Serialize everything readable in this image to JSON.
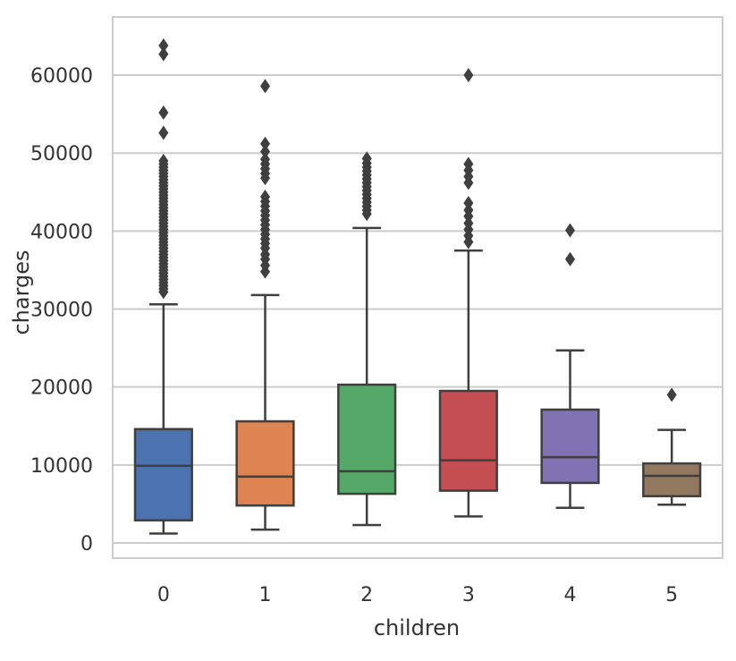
{
  "chart_data": {
    "type": "box",
    "title": "",
    "xlabel": "children",
    "ylabel": "charges",
    "ylim": [
      -2000,
      67000
    ],
    "yticks": [
      0,
      10000,
      20000,
      30000,
      40000,
      50000,
      60000
    ],
    "ytick_labels": [
      "0",
      "10000",
      "20000",
      "30000",
      "40000",
      "50000",
      "60000"
    ],
    "grid": true,
    "categories": [
      "0",
      "1",
      "2",
      "3",
      "4",
      "5"
    ],
    "series": [
      {
        "name": "0",
        "color": "#4c72b0",
        "whisker_low": 1200,
        "q1": 2900,
        "median": 9900,
        "q3": 14600,
        "whisker_high": 30600,
        "outliers": [
          32200,
          32600,
          33000,
          33400,
          33800,
          34200,
          34600,
          35000,
          35400,
          35800,
          36200,
          36600,
          37000,
          37400,
          37800,
          38200,
          38600,
          39000,
          39400,
          39800,
          40200,
          40600,
          41000,
          41400,
          41800,
          42200,
          42600,
          43000,
          43400,
          43800,
          44200,
          44600,
          45000,
          45400,
          45800,
          46200,
          46600,
          47000,
          47400,
          47800,
          48200,
          48600,
          49000,
          52600,
          55200,
          62700,
          63800
        ]
      },
      {
        "name": "1",
        "color": "#dd8452",
        "whisker_low": 1700,
        "q1": 4800,
        "median": 8500,
        "q3": 15600,
        "whisker_high": 31800,
        "outliers": [
          34800,
          35600,
          36400,
          37000,
          37800,
          38400,
          39000,
          39600,
          40200,
          40800,
          41400,
          42000,
          42600,
          43200,
          43800,
          44400,
          46800,
          47400,
          48000,
          48600,
          49200,
          50200,
          51200,
          58600
        ]
      },
      {
        "name": "2",
        "color": "#55a868",
        "whisker_low": 2300,
        "q1": 6300,
        "median": 9200,
        "q3": 20300,
        "whisker_high": 40400,
        "outliers": [
          42200,
          42700,
          43200,
          43700,
          44200,
          44700,
          45200,
          45700,
          46200,
          46700,
          47200,
          47700,
          48200,
          48700,
          49300
        ]
      },
      {
        "name": "3",
        "color": "#c44e52",
        "whisker_low": 3400,
        "q1": 6700,
        "median": 10600,
        "q3": 19500,
        "whisker_high": 37500,
        "outliers": [
          38600,
          39400,
          40200,
          41000,
          41900,
          42700,
          43600,
          46200,
          47000,
          47800,
          48600,
          60000
        ]
      },
      {
        "name": "4",
        "color": "#8172b3",
        "whisker_low": 4500,
        "q1": 7700,
        "median": 11000,
        "q3": 17100,
        "whisker_high": 24700,
        "outliers": [
          36400,
          40100
        ]
      },
      {
        "name": "5",
        "color": "#937860",
        "whisker_low": 4900,
        "q1": 6000,
        "median": 8600,
        "q3": 10200,
        "whisker_high": 14500,
        "outliers": [
          19000
        ]
      }
    ]
  }
}
